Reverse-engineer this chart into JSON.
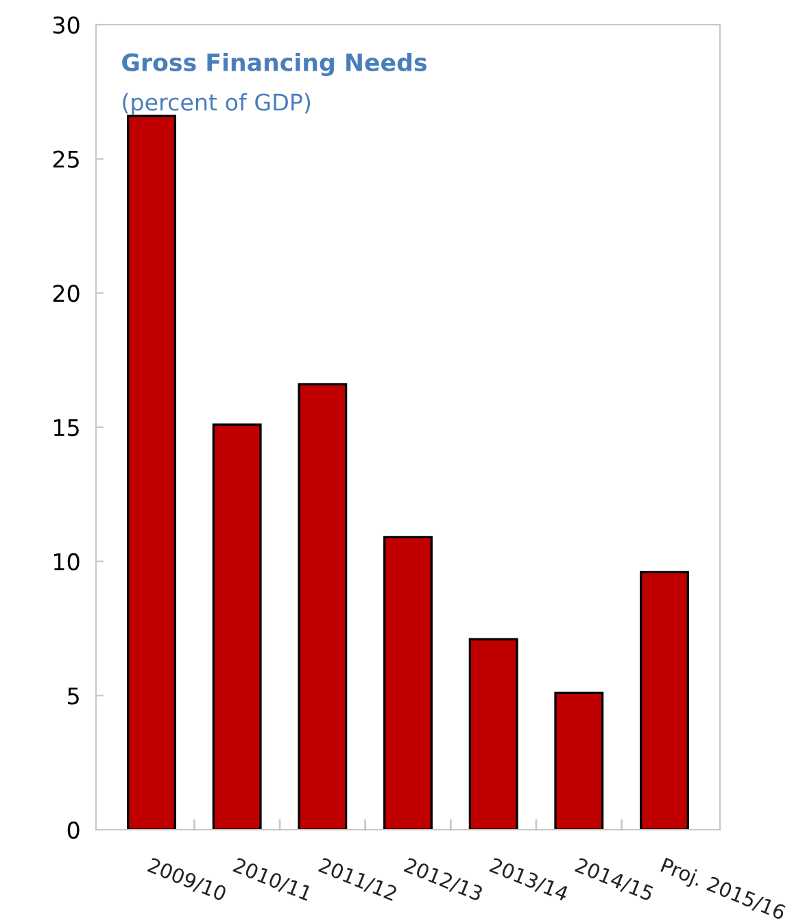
{
  "chart_data": {
    "type": "bar",
    "title": "Gross Financing Needs",
    "subtitle": "(percent of GDP)",
    "categories": [
      "2009/10",
      "2010/11",
      "2011/12",
      "2012/13",
      "2013/14",
      "2014/15",
      "Proj. 2015/16"
    ],
    "values": [
      26.6,
      15.1,
      16.6,
      10.9,
      7.1,
      5.1,
      9.6
    ],
    "color": "#c00000",
    "ylim": [
      0,
      30
    ],
    "yticks": [
      0,
      5,
      10,
      15,
      20,
      25,
      30
    ],
    "grid": false
  }
}
